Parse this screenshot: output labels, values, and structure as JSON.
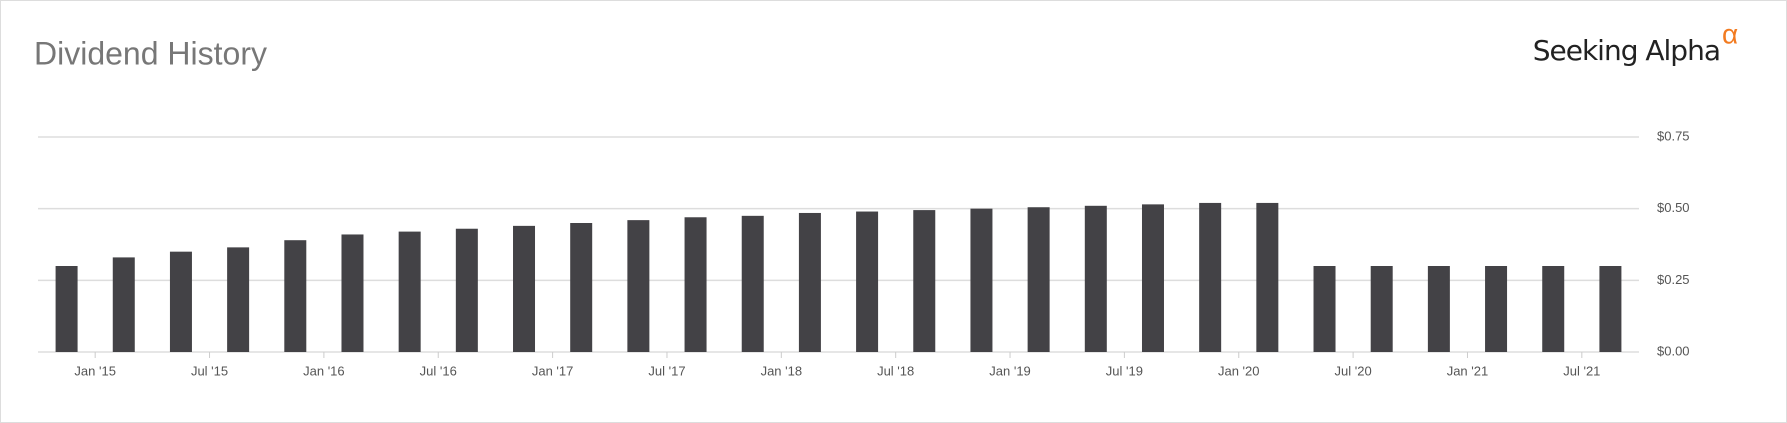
{
  "chart_data": {
    "type": "bar",
    "title": "Dividend History",
    "logo": "Seeking Alpha",
    "logo_mark": "α",
    "x": [
      "2014-11",
      "2015-02",
      "2015-05",
      "2015-08",
      "2015-11",
      "2016-02",
      "2016-05",
      "2016-08",
      "2016-11",
      "2017-02",
      "2017-05",
      "2017-08",
      "2017-11",
      "2018-02",
      "2018-05",
      "2018-08",
      "2018-11",
      "2019-02",
      "2019-05",
      "2019-08",
      "2019-11",
      "2020-02",
      "2020-05",
      "2020-08",
      "2020-11",
      "2021-02",
      "2021-05",
      "2021-08"
    ],
    "values": [
      0.3,
      0.33,
      0.35,
      0.365,
      0.39,
      0.41,
      0.42,
      0.43,
      0.44,
      0.45,
      0.46,
      0.47,
      0.475,
      0.485,
      0.49,
      0.495,
      0.5,
      0.505,
      0.51,
      0.515,
      0.52,
      0.52,
      0.3,
      0.3,
      0.3,
      0.3,
      0.3,
      0.3
    ],
    "color": "#434246",
    "xlim": [
      "2014-10",
      "2021-10"
    ],
    "xticks": [
      {
        "value": "2015-01",
        "label": "Jan '15"
      },
      {
        "value": "2015-07",
        "label": "Jul '15"
      },
      {
        "value": "2016-01",
        "label": "Jan '16"
      },
      {
        "value": "2016-07",
        "label": "Jul '16"
      },
      {
        "value": "2017-01",
        "label": "Jan '17"
      },
      {
        "value": "2017-07",
        "label": "Jul '17"
      },
      {
        "value": "2018-01",
        "label": "Jan '18"
      },
      {
        "value": "2018-07",
        "label": "Jul '18"
      },
      {
        "value": "2019-01",
        "label": "Jan '19"
      },
      {
        "value": "2019-07",
        "label": "Jul '19"
      },
      {
        "value": "2020-01",
        "label": "Jan '20"
      },
      {
        "value": "2020-07",
        "label": "Jul '20"
      },
      {
        "value": "2021-01",
        "label": "Jan '21"
      },
      {
        "value": "2021-07",
        "label": "Jul '21"
      }
    ],
    "ylim": [
      0,
      0.75
    ],
    "yticks": [
      {
        "value": 0,
        "label": "$0.00"
      },
      {
        "value": 0.25,
        "label": "$0.25"
      },
      {
        "value": 0.5,
        "label": "$0.50"
      },
      {
        "value": 0.75,
        "label": "$0.75"
      }
    ],
    "grid": true
  }
}
